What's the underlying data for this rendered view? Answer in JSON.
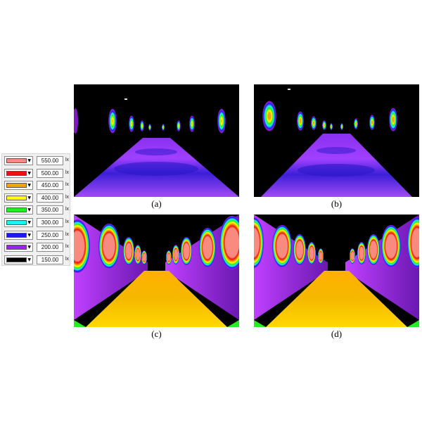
{
  "legend": {
    "unit": "lx",
    "rows": [
      {
        "value": "550.00",
        "color": "#f88a80"
      },
      {
        "value": "500.00",
        "color": "#ee1111"
      },
      {
        "value": "450.00",
        "color": "#f5a300"
      },
      {
        "value": "400.00",
        "color": "#ffff00"
      },
      {
        "value": "350.00",
        "color": "#22ee22"
      },
      {
        "value": "300.00",
        "color": "#22f0f0"
      },
      {
        "value": "250.00",
        "color": "#1a1aee"
      },
      {
        "value": "200.00",
        "color": "#a020f0"
      },
      {
        "value": "150.00",
        "color": "#000000"
      }
    ]
  },
  "panels": [
    {
      "caption": "(a)"
    },
    {
      "caption": "(b)"
    },
    {
      "caption": "(c)"
    },
    {
      "caption": "(d)"
    }
  ]
}
